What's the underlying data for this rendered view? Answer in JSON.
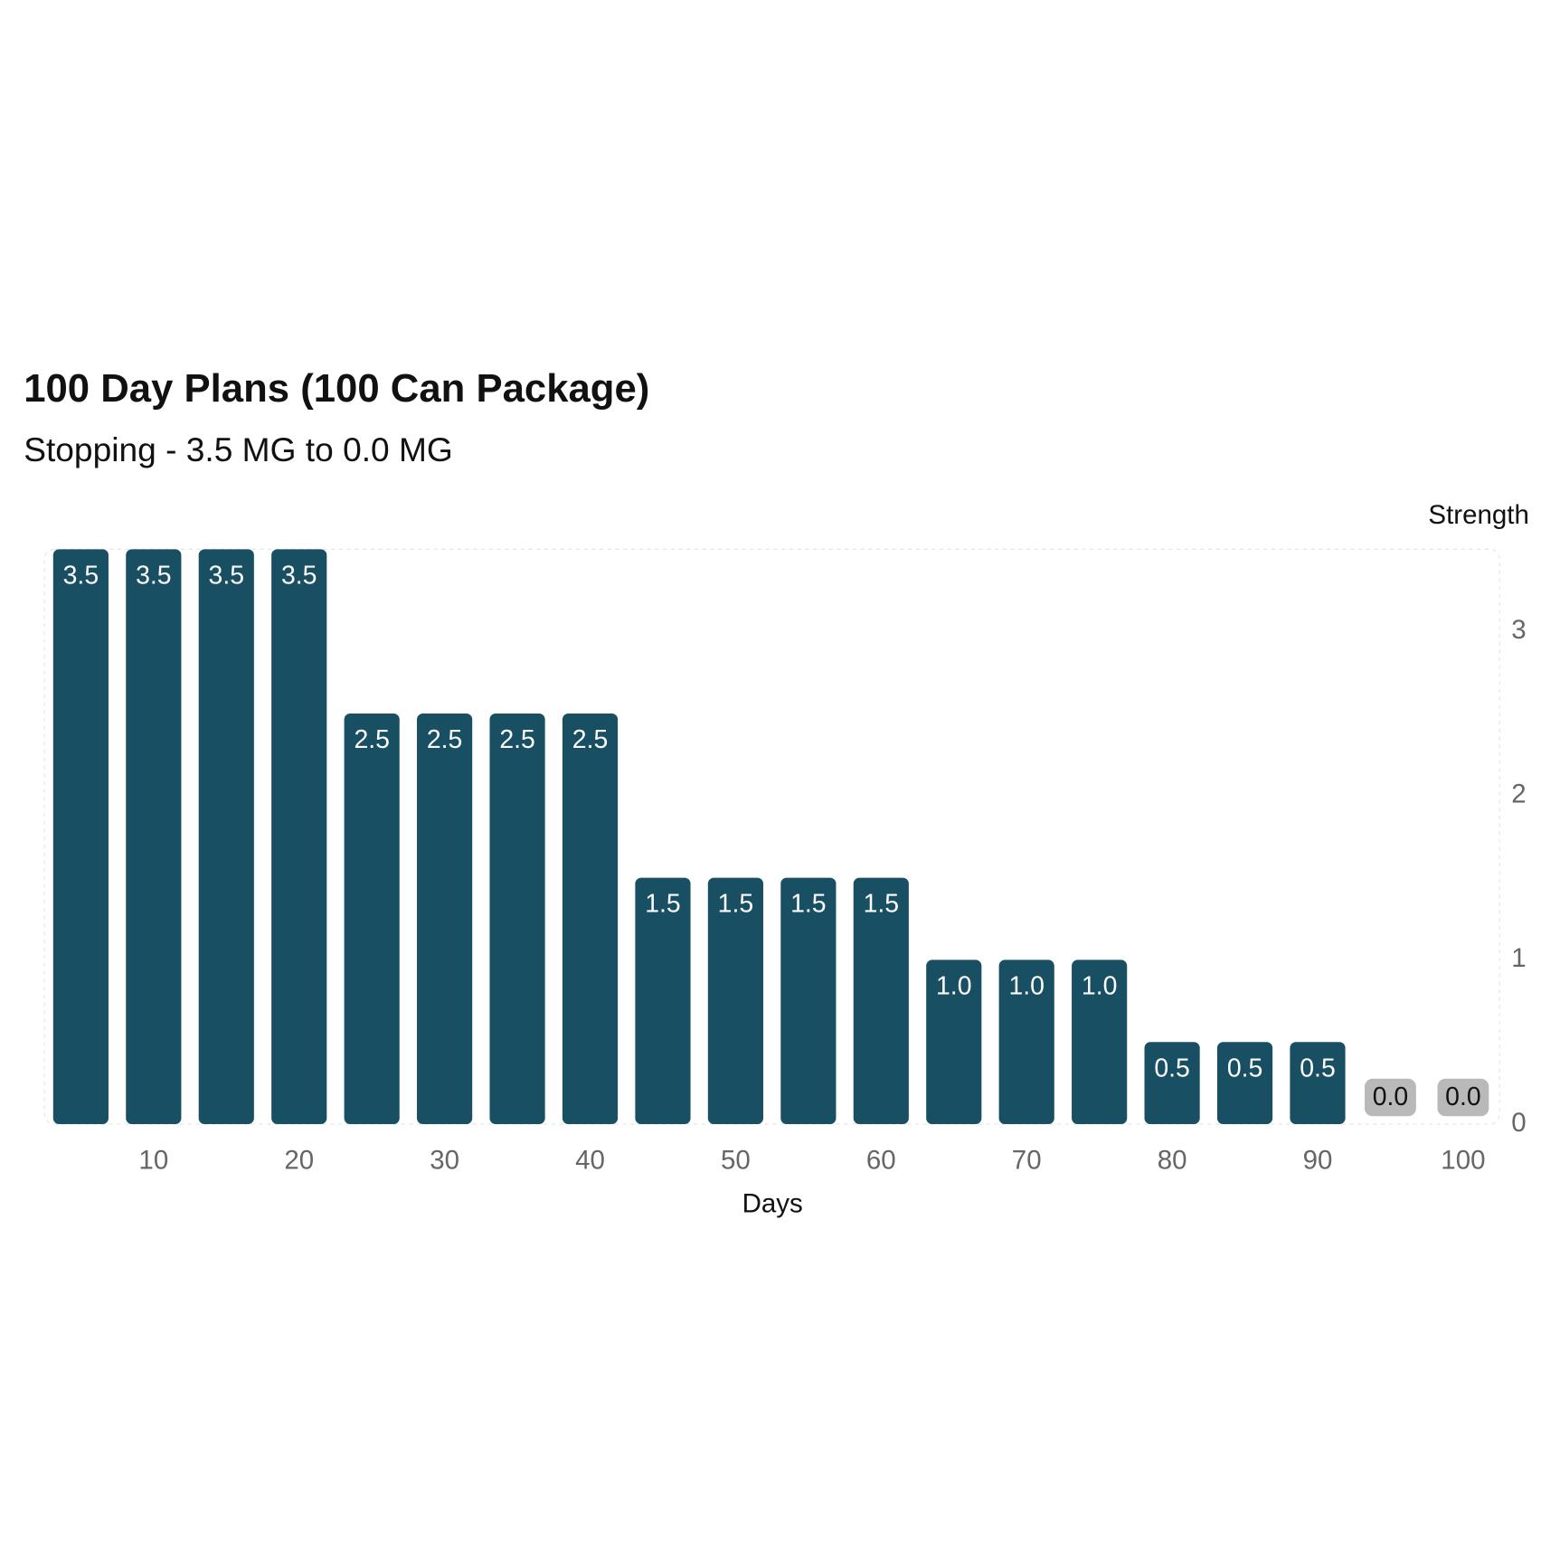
{
  "chart_data": {
    "type": "bar",
    "title": "100 Day Plans (100 Can Package)",
    "subtitle": "Stopping - 3.5 MG to 0.0 MG",
    "x_label": "Days",
    "y_label": "Strength",
    "x": [
      5,
      10,
      15,
      20,
      25,
      30,
      35,
      40,
      45,
      50,
      55,
      60,
      65,
      70,
      75,
      80,
      85,
      90,
      95,
      100
    ],
    "values": [
      3.5,
      3.5,
      3.5,
      3.5,
      2.5,
      2.5,
      2.5,
      2.5,
      1.5,
      1.5,
      1.5,
      1.5,
      1,
      1,
      1,
      0.5,
      0.5,
      0.5,
      0,
      0
    ],
    "value_labels": [
      "3.5",
      "3.5",
      "3.5",
      "3.5",
      "2.5",
      "2.5",
      "2.5",
      "2.5",
      "1.5",
      "1.5",
      "1.5",
      "1.5",
      "1.0",
      "1.0",
      "1.0",
      "0.5",
      "0.5",
      "0.5",
      "0.0",
      "0.0"
    ],
    "color": "#184f63",
    "xlim": [
      2.5,
      102.5
    ],
    "xticks": [
      10,
      20,
      30,
      40,
      50,
      60,
      70,
      80,
      90,
      100
    ],
    "ylim": [
      0,
      3.5
    ],
    "yticks": [
      0,
      1,
      2,
      3
    ],
    "y_axis_side": "right"
  }
}
